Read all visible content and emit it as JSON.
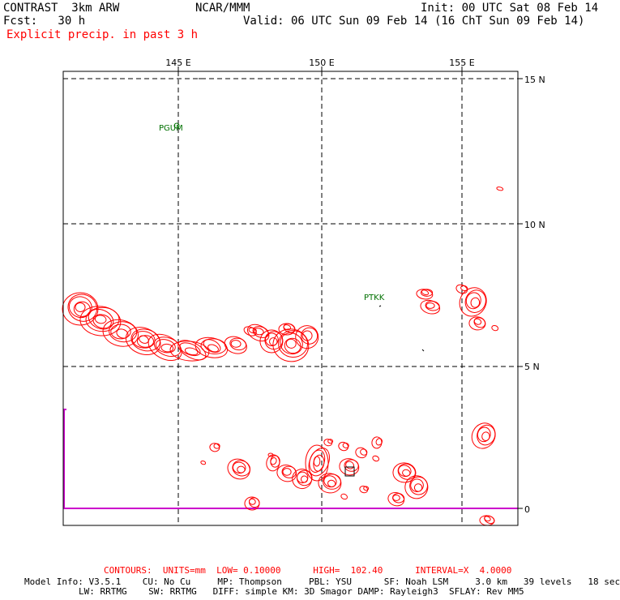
{
  "header": {
    "model_title": "CONTRAST  3km ARW",
    "org": "NCAR/MMM",
    "init": "Init: 00 UTC Sat 08 Feb 14",
    "fcst": "Fcst:   30 h",
    "valid": "Valid: 06 UTC Sun 09 Feb 14 (16 ChT Sun 09 Feb 14)",
    "field": "Explicit precip. in past 3 h"
  },
  "axes": {
    "lon_labels": [
      "145 E",
      "150 E",
      "155 E"
    ],
    "lat_labels": [
      "15 N",
      "10 N",
      "5 N",
      "0"
    ]
  },
  "stations": [
    "PGUM",
    "PTKK"
  ],
  "footer": {
    "contours": "CONTOURS:  UNITS=mm  LOW= 0.10000      HIGH=  102.40      INTERVAL=X  4.0000",
    "model_info_1": "Model Info: V3.5.1    CU: No Cu     MP: Thompson     PBL: YSU      SF: Noah LSM     3.0 km   39 levels   18 sec",
    "model_info_2": "LW: RRTMG    SW: RRTMG   DIFF: simple KM: 3D Smagor DAMP: Rayleigh3  SFLAY: Rev MM5"
  },
  "colors": {
    "precip_contour": "#ff0000",
    "station_label": "#007000",
    "equator_line": "#cc00cc",
    "grid": "#000000"
  }
}
